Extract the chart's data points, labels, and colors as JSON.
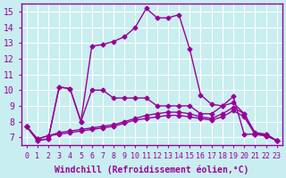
{
  "title": "",
  "xlabel": "Windchill (Refroidissement éolien,°C)",
  "ylabel": "",
  "background_color": "#c8eef0",
  "line_color": "#990099",
  "grid_color": "#ffffff",
  "xlim": [
    -0.5,
    23.5
  ],
  "ylim": [
    6.5,
    15.5
  ],
  "xticks": [
    0,
    1,
    2,
    3,
    4,
    5,
    6,
    7,
    8,
    9,
    10,
    11,
    12,
    13,
    14,
    15,
    16,
    17,
    18,
    19,
    20,
    21,
    22,
    23
  ],
  "yticks": [
    7,
    8,
    9,
    10,
    11,
    12,
    13,
    14,
    15
  ],
  "line1_x": [
    0,
    1,
    2,
    3,
    4,
    5,
    6,
    7,
    8,
    9,
    10,
    11,
    12,
    13,
    14,
    15,
    16,
    17,
    18,
    19,
    20,
    21,
    22,
    23
  ],
  "line1_y": [
    7.7,
    6.8,
    6.9,
    10.2,
    10.1,
    8.0,
    12.8,
    12.9,
    13.1,
    13.4,
    14.0,
    15.2,
    14.6,
    14.6,
    14.8,
    12.6,
    9.7,
    9.1,
    9.0,
    9.6,
    7.2,
    7.2,
    7.1,
    6.8
  ],
  "line2_x": [
    0,
    1,
    2,
    3,
    4,
    5,
    6,
    7,
    8,
    9,
    10,
    11,
    12,
    13,
    14,
    15,
    16,
    17,
    18,
    19,
    20,
    21,
    22,
    23
  ],
  "line2_y": [
    7.7,
    6.8,
    6.9,
    10.2,
    10.1,
    8.0,
    10.0,
    10.0,
    9.5,
    9.5,
    9.5,
    9.5,
    9.0,
    9.0,
    9.0,
    9.0,
    8.5,
    8.5,
    9.0,
    9.2,
    8.5,
    7.2,
    7.2,
    6.8
  ],
  "line3_x": [
    0,
    1,
    2,
    3,
    4,
    5,
    6,
    7,
    8,
    9,
    10,
    11,
    12,
    13,
    14,
    15,
    16,
    17,
    18,
    19,
    20,
    21,
    22,
    23
  ],
  "line3_y": [
    7.7,
    6.9,
    7.1,
    7.3,
    7.4,
    7.5,
    7.6,
    7.7,
    7.8,
    8.0,
    8.2,
    8.4,
    8.5,
    8.6,
    8.6,
    8.5,
    8.3,
    8.2,
    8.5,
    8.9,
    8.5,
    7.3,
    7.2,
    6.8
  ],
  "line4_x": [
    0,
    1,
    2,
    3,
    4,
    5,
    6,
    7,
    8,
    9,
    10,
    11,
    12,
    13,
    14,
    15,
    16,
    17,
    18,
    19,
    20,
    21,
    22,
    23
  ],
  "line4_y": [
    7.7,
    6.9,
    7.1,
    7.2,
    7.3,
    7.4,
    7.5,
    7.6,
    7.7,
    7.9,
    8.1,
    8.2,
    8.3,
    8.4,
    8.4,
    8.3,
    8.2,
    8.1,
    8.3,
    8.7,
    8.3,
    7.2,
    7.1,
    6.8
  ],
  "marker": "D",
  "markersize": 2.5,
  "linewidth": 1.0,
  "xlabel_fontsize": 7,
  "tick_fontsize": 6,
  "ytick_fontsize": 7
}
